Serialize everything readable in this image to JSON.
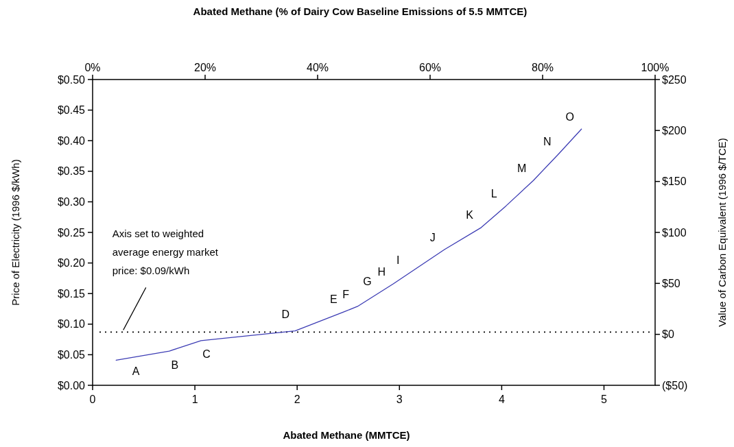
{
  "chart_data": {
    "type": "line",
    "xlabel": "Abated Methane (MMTCE)",
    "ylabel": "Price of Electricity (1996 $/kWh)",
    "y2label": "Value of Carbon Equivalent (1996 $/TCE)",
    "x2label": "Abated Methane (% of Dairy Cow Baseline Emissions of 5.5 MMTCE)",
    "xlim": [
      0,
      5.5
    ],
    "xticks": [
      0,
      1,
      2,
      3,
      4,
      5
    ],
    "x2lim": [
      0,
      100
    ],
    "x2ticks": [
      {
        "value": 0,
        "label": "0%"
      },
      {
        "value": 20,
        "label": "20%"
      },
      {
        "value": 40,
        "label": "40%"
      },
      {
        "value": 60,
        "label": "60%"
      },
      {
        "value": 80,
        "label": "80%"
      },
      {
        "value": 100,
        "label": "100%"
      }
    ],
    "ylim": [
      0,
      0.5
    ],
    "yticks": [
      {
        "value": 0,
        "label": "$0.00"
      },
      {
        "value": 0.05,
        "label": "$0.05"
      },
      {
        "value": 0.1,
        "label": "$0.10"
      },
      {
        "value": 0.15,
        "label": "$0.15"
      },
      {
        "value": 0.2,
        "label": "$0.20"
      },
      {
        "value": 0.25,
        "label": "$0.25"
      },
      {
        "value": 0.3,
        "label": "$0.30"
      },
      {
        "value": 0.35,
        "label": "$0.35"
      },
      {
        "value": 0.4,
        "label": "$0.40"
      },
      {
        "value": 0.45,
        "label": "$0.45"
      },
      {
        "value": 0.5,
        "label": "$0.50"
      }
    ],
    "y2lim": [
      -50,
      250
    ],
    "y2ticks": [
      {
        "value": -50,
        "label": "($50)"
      },
      {
        "value": 0,
        "label": "$0"
      },
      {
        "value": 50,
        "label": "$50"
      },
      {
        "value": 100,
        "label": "$100"
      },
      {
        "value": 150,
        "label": "$150"
      },
      {
        "value": 200,
        "label": "$200"
      },
      {
        "value": 250,
        "label": "$250"
      }
    ],
    "series": [
      {
        "color": "#3c3cb4",
        "x": [
          0.23,
          0.75,
          1.06,
          1.98,
          2.47,
          2.59,
          2.94,
          3.44,
          3.8,
          4.04,
          4.31,
          4.56,
          4.78
        ],
        "values": [
          0.041,
          0.056,
          0.073,
          0.089,
          0.121,
          0.129,
          0.166,
          0.222,
          0.258,
          0.293,
          0.335,
          0.379,
          0.419
        ]
      }
    ],
    "ref_lines": [
      {
        "axis": "y",
        "value": 0.087,
        "label": null,
        "color": "#000000",
        "line_style": "dotted"
      }
    ],
    "annotations": [
      {
        "text": "Axis set to weighted average energy market price: $0.09/kWh",
        "x": 0.3,
        "y": 0.087
      },
      {
        "text": "A",
        "x": 0.37,
        "y": 0.045
      },
      {
        "text": "B",
        "x": 0.75,
        "y": 0.056
      },
      {
        "text": "C",
        "x": 1.06,
        "y": 0.073
      },
      {
        "text": "D",
        "x": 1.98,
        "y": 0.089
      },
      {
        "text": "E",
        "x": 2.47,
        "y": 0.121
      },
      {
        "text": "F",
        "x": 2.59,
        "y": 0.129
      },
      {
        "text": "G",
        "x": 2.8,
        "y": 0.15
      },
      {
        "text": "H",
        "x": 2.94,
        "y": 0.166
      },
      {
        "text": "I",
        "x": 3.1,
        "y": 0.184
      },
      {
        "text": "J",
        "x": 3.44,
        "y": 0.222
      },
      {
        "text": "K",
        "x": 3.8,
        "y": 0.258
      },
      {
        "text": "L",
        "x": 4.04,
        "y": 0.293
      },
      {
        "text": "M",
        "x": 4.31,
        "y": 0.335
      },
      {
        "text": "N",
        "x": 4.56,
        "y": 0.379
      },
      {
        "text": "O",
        "x": 4.78,
        "y": 0.419
      }
    ],
    "grid": false,
    "line_style": "solid"
  }
}
